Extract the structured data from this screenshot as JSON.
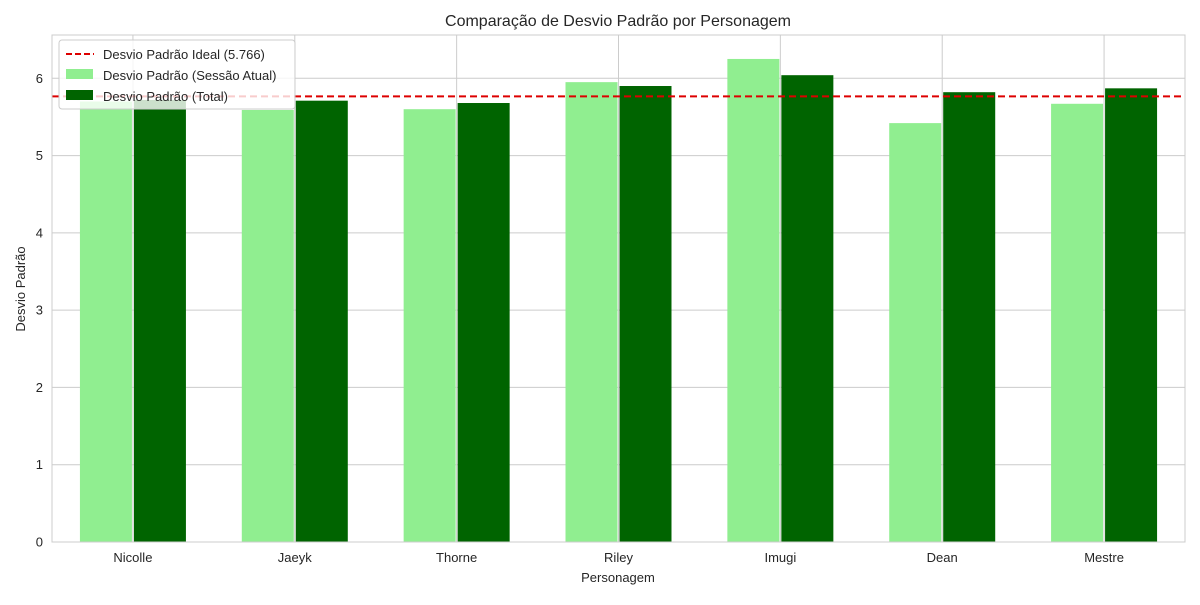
{
  "chart_data": {
    "type": "bar",
    "title": "Comparação de Desvio Padrão por Personagem",
    "xlabel": "Personagem",
    "ylabel": "Desvio Padrão",
    "categories": [
      "Nicolle",
      "Jaeyk",
      "Thorne",
      "Riley",
      "Imugi",
      "Dean",
      "Mestre"
    ],
    "series": [
      {
        "name": "Desvio Padrão (Sessão Atual)",
        "color": "#90ee90",
        "values": [
          5.7,
          5.59,
          5.6,
          5.95,
          6.25,
          5.42,
          5.67
        ]
      },
      {
        "name": "Desvio Padrão (Total)",
        "color": "#006400",
        "values": [
          5.72,
          5.71,
          5.68,
          5.9,
          6.04,
          5.82,
          5.87
        ]
      }
    ],
    "reference_line": {
      "name": "Desvio Padrão Ideal (5.766)",
      "value": 5.766,
      "color": "#dd0000",
      "style": "dashed"
    },
    "ylim": [
      0,
      6.56
    ],
    "yticks": [
      "0",
      "1",
      "2",
      "3",
      "4",
      "5",
      "6"
    ],
    "grid": true,
    "legend_position": "top-left"
  }
}
